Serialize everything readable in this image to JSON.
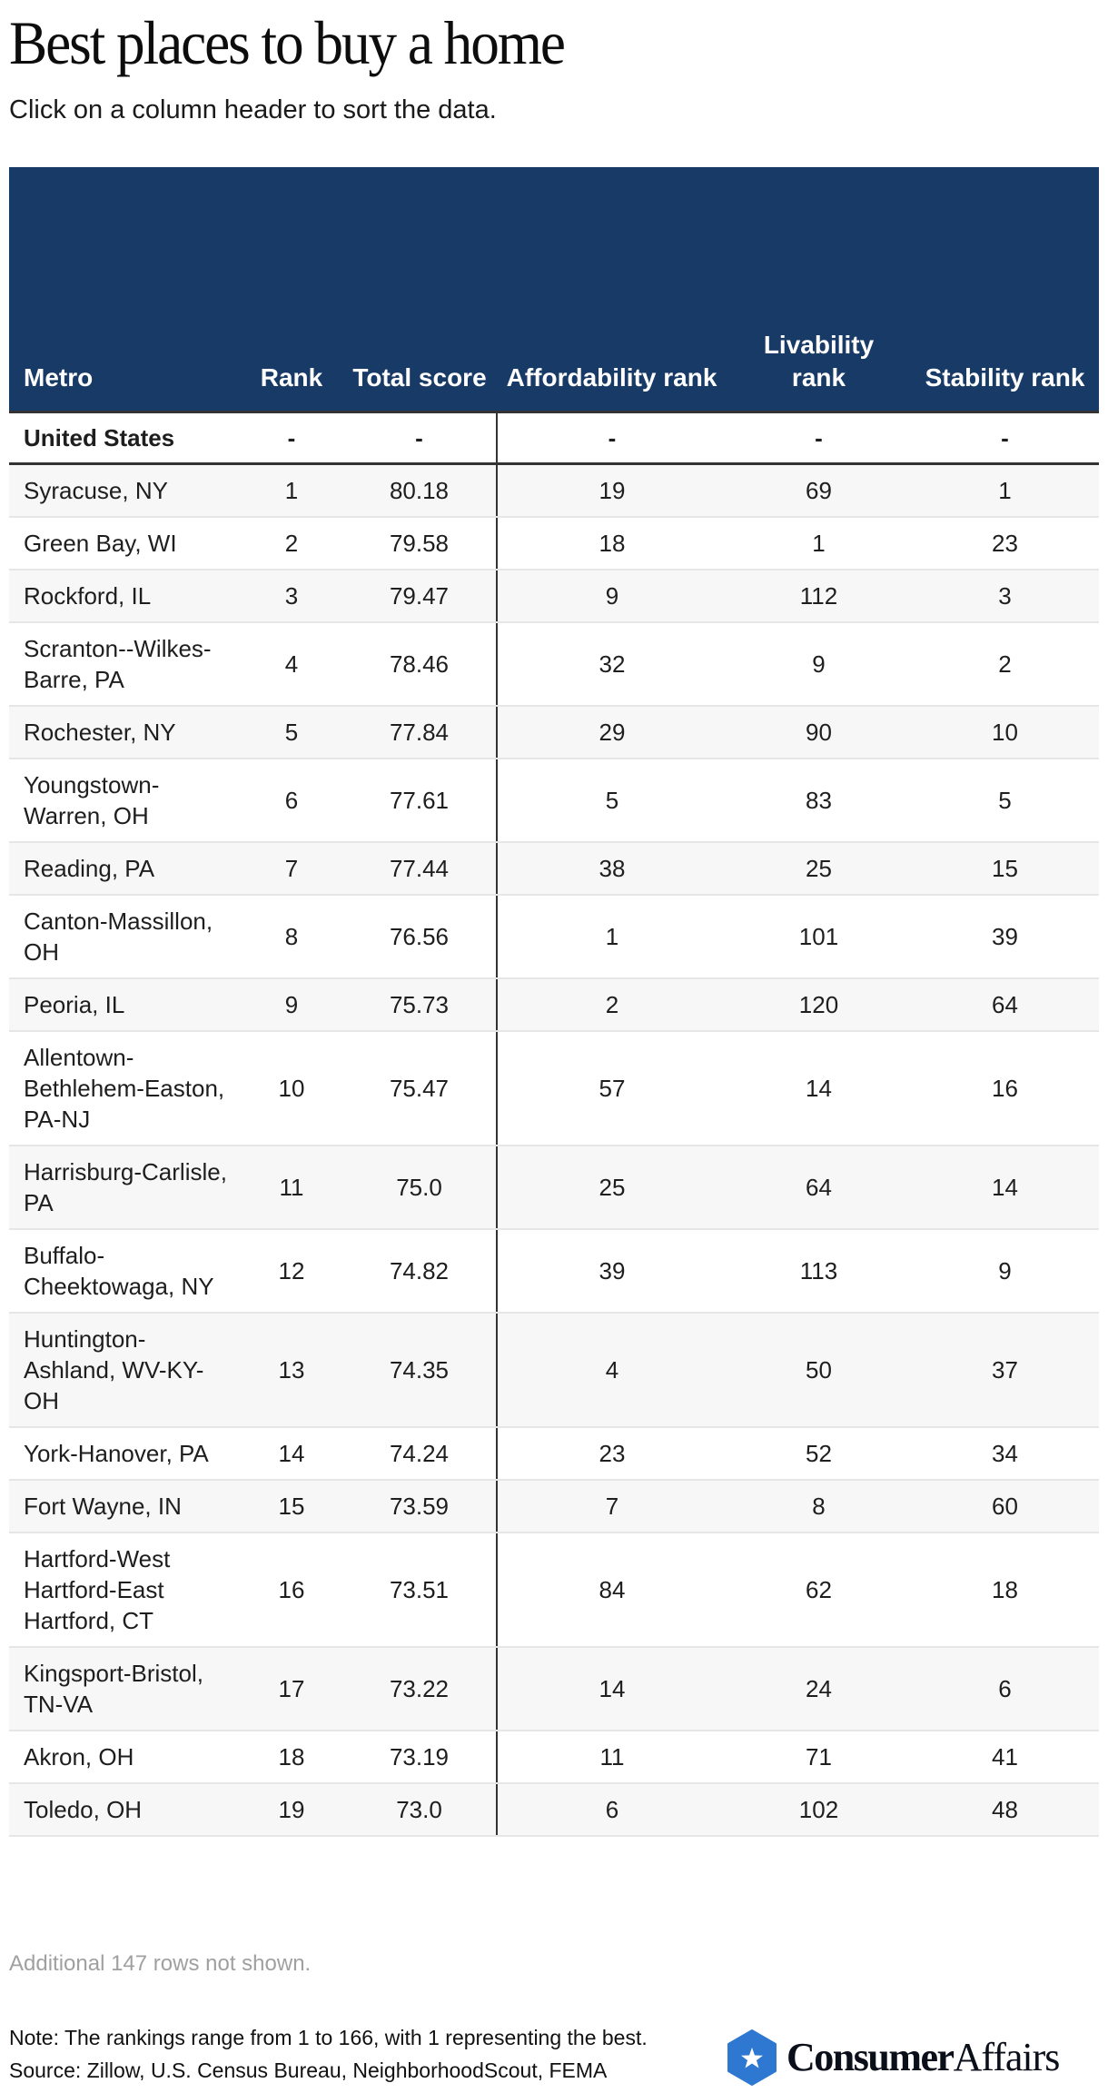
{
  "header": {
    "title": "Best places to buy a home",
    "subtitle": "Click on a column header to sort the data."
  },
  "table": {
    "columns": [
      {
        "key": "metro",
        "label": "Metro"
      },
      {
        "key": "rank",
        "label": "Rank"
      },
      {
        "key": "total_score",
        "label": "Total score"
      },
      {
        "key": "affordability_rank",
        "label": "Affordability rank"
      },
      {
        "key": "livability_rank",
        "label": "Livability rank"
      },
      {
        "key": "stability_rank",
        "label": "Stability rank"
      }
    ],
    "us_row": {
      "metro": "United States",
      "rank": "-",
      "total_score": "-",
      "affordability_rank": "-",
      "livability_rank": "-",
      "stability_rank": "-"
    },
    "rows": [
      {
        "metro": "Syracuse, NY",
        "rank": "1",
        "total_score": "80.18",
        "affordability_rank": "19",
        "livability_rank": "69",
        "stability_rank": "1"
      },
      {
        "metro": "Green Bay, WI",
        "rank": "2",
        "total_score": "79.58",
        "affordability_rank": "18",
        "livability_rank": "1",
        "stability_rank": "23"
      },
      {
        "metro": "Rockford, IL",
        "rank": "3",
        "total_score": "79.47",
        "affordability_rank": "9",
        "livability_rank": "112",
        "stability_rank": "3"
      },
      {
        "metro": "Scranton--Wilkes-Barre, PA",
        "rank": "4",
        "total_score": "78.46",
        "affordability_rank": "32",
        "livability_rank": "9",
        "stability_rank": "2"
      },
      {
        "metro": "Rochester, NY",
        "rank": "5",
        "total_score": "77.84",
        "affordability_rank": "29",
        "livability_rank": "90",
        "stability_rank": "10"
      },
      {
        "metro": "Youngstown-Warren, OH",
        "rank": "6",
        "total_score": "77.61",
        "affordability_rank": "5",
        "livability_rank": "83",
        "stability_rank": "5"
      },
      {
        "metro": "Reading, PA",
        "rank": "7",
        "total_score": "77.44",
        "affordability_rank": "38",
        "livability_rank": "25",
        "stability_rank": "15"
      },
      {
        "metro": "Canton-Massillon, OH",
        "rank": "8",
        "total_score": "76.56",
        "affordability_rank": "1",
        "livability_rank": "101",
        "stability_rank": "39"
      },
      {
        "metro": "Peoria, IL",
        "rank": "9",
        "total_score": "75.73",
        "affordability_rank": "2",
        "livability_rank": "120",
        "stability_rank": "64"
      },
      {
        "metro": "Allentown-Bethlehem-Easton, PA-NJ",
        "rank": "10",
        "total_score": "75.47",
        "affordability_rank": "57",
        "livability_rank": "14",
        "stability_rank": "16"
      },
      {
        "metro": "Harrisburg-Carlisle, PA",
        "rank": "11",
        "total_score": "75.0",
        "affordability_rank": "25",
        "livability_rank": "64",
        "stability_rank": "14"
      },
      {
        "metro": "Buffalo-Cheektowaga, NY",
        "rank": "12",
        "total_score": "74.82",
        "affordability_rank": "39",
        "livability_rank": "113",
        "stability_rank": "9"
      },
      {
        "metro": "Huntington-Ashland, WV-KY-OH",
        "rank": "13",
        "total_score": "74.35",
        "affordability_rank": "4",
        "livability_rank": "50",
        "stability_rank": "37"
      },
      {
        "metro": "York-Hanover, PA",
        "rank": "14",
        "total_score": "74.24",
        "affordability_rank": "23",
        "livability_rank": "52",
        "stability_rank": "34"
      },
      {
        "metro": "Fort Wayne, IN",
        "rank": "15",
        "total_score": "73.59",
        "affordability_rank": "7",
        "livability_rank": "8",
        "stability_rank": "60"
      },
      {
        "metro": "Hartford-West Hartford-East Hartford, CT",
        "rank": "16",
        "total_score": "73.51",
        "affordability_rank": "84",
        "livability_rank": "62",
        "stability_rank": "18"
      },
      {
        "metro": "Kingsport-Bristol, TN-VA",
        "rank": "17",
        "total_score": "73.22",
        "affordability_rank": "14",
        "livability_rank": "24",
        "stability_rank": "6"
      },
      {
        "metro": "Akron, OH",
        "rank": "18",
        "total_score": "73.19",
        "affordability_rank": "11",
        "livability_rank": "71",
        "stability_rank": "41"
      },
      {
        "metro": "Toledo, OH",
        "rank": "19",
        "total_score": "73.0",
        "affordability_rank": "6",
        "livability_rank": "102",
        "stability_rank": "48"
      }
    ],
    "more_rows_text": "Additional 147 rows not shown."
  },
  "footer": {
    "note": "Note: The rankings range from 1 to 166, with 1 representing the best.",
    "source": "Source: Zillow, U.S. Census Bureau, NeighborhoodScout, FEMA",
    "logo": {
      "bold": "Consumer",
      "light": "Affairs",
      "icon": "star-hexagon-icon"
    }
  },
  "colors": {
    "header_bg": "#173a66",
    "header_text": "#ffffff",
    "alt_row_bg": "#f7f7f7",
    "row_border": "#e6e6e6",
    "divider": "#333333",
    "muted_text": "#a0a0a0",
    "logo_blue": "#2e78d2"
  },
  "chart_data": {
    "type": "table",
    "title": "Best places to buy a home",
    "subtitle": "Click on a column header to sort the data.",
    "columns": [
      "Metro",
      "Rank",
      "Total score",
      "Affordability rank",
      "Livability rank",
      "Stability rank"
    ],
    "rows": [
      [
        "United States",
        "-",
        "-",
        "-",
        "-",
        "-"
      ],
      [
        "Syracuse, NY",
        1,
        80.18,
        19,
        69,
        1
      ],
      [
        "Green Bay, WI",
        2,
        79.58,
        18,
        1,
        23
      ],
      [
        "Rockford, IL",
        3,
        79.47,
        9,
        112,
        3
      ],
      [
        "Scranton--Wilkes-Barre, PA",
        4,
        78.46,
        32,
        9,
        2
      ],
      [
        "Rochester, NY",
        5,
        77.84,
        29,
        90,
        10
      ],
      [
        "Youngstown-Warren, OH",
        6,
        77.61,
        5,
        83,
        5
      ],
      [
        "Reading, PA",
        7,
        77.44,
        38,
        25,
        15
      ],
      [
        "Canton-Massillon, OH",
        8,
        76.56,
        1,
        101,
        39
      ],
      [
        "Peoria, IL",
        9,
        75.73,
        2,
        120,
        64
      ],
      [
        "Allentown-Bethlehem-Easton, PA-NJ",
        10,
        75.47,
        57,
        14,
        16
      ],
      [
        "Harrisburg-Carlisle, PA",
        11,
        75.0,
        25,
        64,
        14
      ],
      [
        "Buffalo-Cheektowaga, NY",
        12,
        74.82,
        39,
        113,
        9
      ],
      [
        "Huntington-Ashland, WV-KY-OH",
        13,
        74.35,
        4,
        50,
        37
      ],
      [
        "York-Hanover, PA",
        14,
        74.24,
        23,
        52,
        34
      ],
      [
        "Fort Wayne, IN",
        15,
        73.59,
        7,
        8,
        60
      ],
      [
        "Hartford-West Hartford-East Hartford, CT",
        16,
        73.51,
        84,
        62,
        18
      ],
      [
        "Kingsport-Bristol, TN-VA",
        17,
        73.22,
        14,
        24,
        6
      ],
      [
        "Akron, OH",
        18,
        73.19,
        11,
        71,
        41
      ],
      [
        "Toledo, OH",
        19,
        73.0,
        6,
        102,
        48
      ]
    ],
    "footnotes": [
      "Additional 147 rows not shown.",
      "Note: The rankings range from 1 to 166, with 1 representing the best.",
      "Source: Zillow, U.S. Census Bureau, NeighborhoodScout, FEMA"
    ]
  }
}
